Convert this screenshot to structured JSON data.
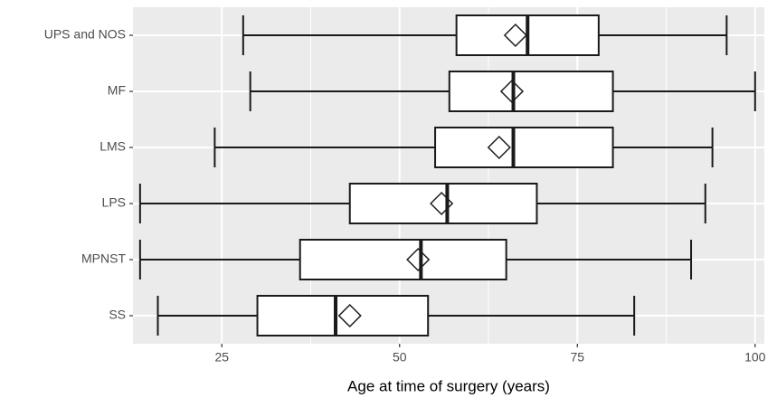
{
  "chart_data": {
    "type": "boxplot",
    "orientation": "horizontal",
    "x_label": "Age at time of surgery (years)",
    "categories": [
      "UPS and NOS",
      "MF",
      "LMS",
      "LPS",
      "MPNST",
      "SS"
    ],
    "boxes": [
      {
        "min": 28,
        "q1": 58,
        "median": 68,
        "q3": 78,
        "max": 96,
        "mean": 66.3
      },
      {
        "min": 29,
        "q1": 57,
        "median": 66,
        "q3": 80,
        "max": 100,
        "mean": 65.8
      },
      {
        "min": 24,
        "q1": 55,
        "median": 66,
        "q3": 80,
        "max": 94,
        "mean": 64
      },
      {
        "min": 13.5,
        "q1": 43,
        "median": 56.7,
        "q3": 69.3,
        "max": 93,
        "mean": 55.9
      },
      {
        "min": 13.5,
        "q1": 36,
        "median": 53,
        "q3": 65,
        "max": 91,
        "mean": 52.6
      },
      {
        "min": 16,
        "q1": 30,
        "median": 41,
        "q3": 54,
        "max": 83,
        "mean": 43
      }
    ],
    "xlim": [
      12.5,
      101.3
    ],
    "xticks": [
      25,
      50,
      75,
      100
    ],
    "grid": true,
    "panel_color": "#ebebeb",
    "box_color": "#ffffff",
    "line_color": "#1a1a1a"
  }
}
